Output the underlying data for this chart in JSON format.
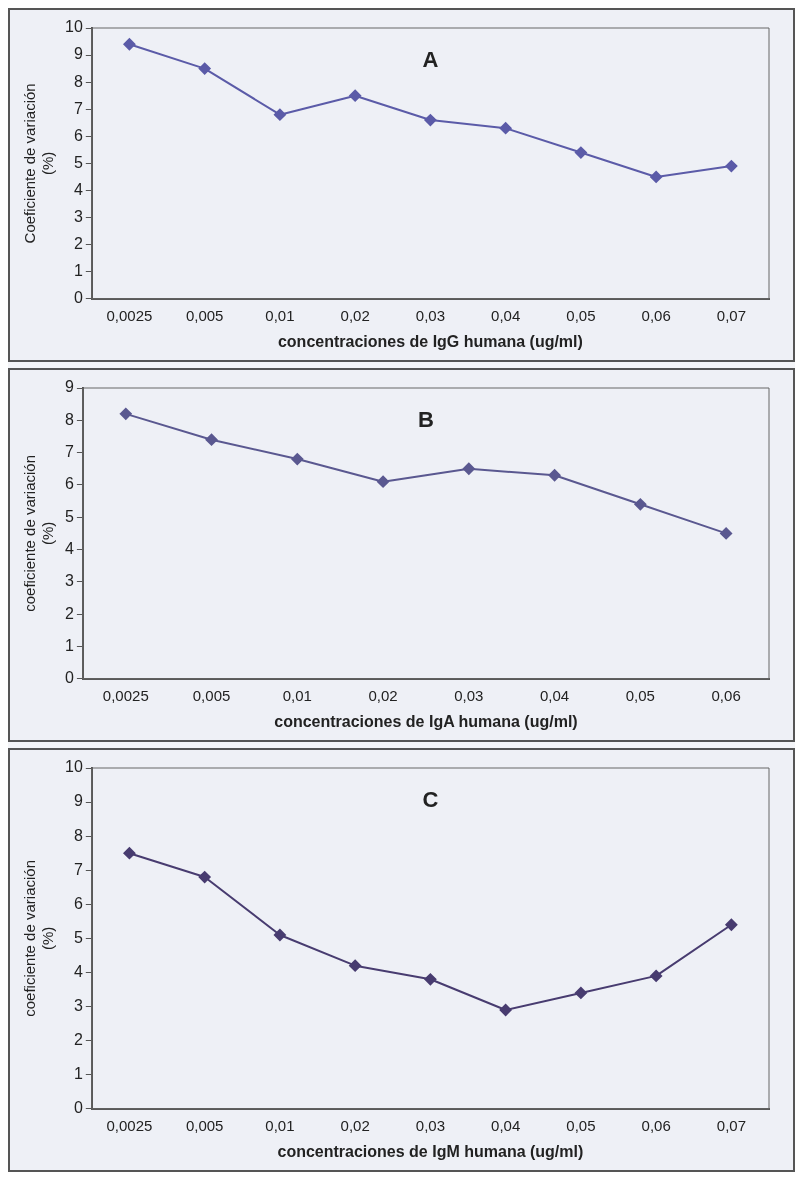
{
  "chart_data": [
    {
      "type": "line",
      "title": "A",
      "xlabel": "concentraciones de IgG humana (ug/ml)",
      "ylabel": "Coeficiente de variación\n(%)",
      "categories": [
        "0,0025",
        "0,005",
        "0,01",
        "0,02",
        "0,03",
        "0,04",
        "0,05",
        "0,06",
        "0,07"
      ],
      "series": [
        {
          "color": "#5b5ba8",
          "values": [
            9.4,
            8.5,
            6.8,
            7.5,
            6.6,
            6.3,
            5.4,
            4.5,
            4.9
          ]
        }
      ],
      "ylim": [
        0,
        10
      ],
      "yticks": [
        0,
        1,
        2,
        3,
        4,
        5,
        6,
        7,
        8,
        9,
        10
      ],
      "grid": false,
      "legend": false,
      "marker": "diamond",
      "line_style": "solid"
    },
    {
      "type": "line",
      "title": "B",
      "xlabel": "concentraciones de IgA humana (ug/ml)",
      "ylabel": "coeficiente de variación\n(%)",
      "categories": [
        "0,0025",
        "0,005",
        "0,01",
        "0,02",
        "0,03",
        "0,04",
        "0,05",
        "0,06"
      ],
      "series": [
        {
          "color": "#5a5890",
          "values": [
            8.2,
            7.4,
            6.8,
            6.1,
            6.5,
            6.3,
            5.4,
            4.5
          ]
        }
      ],
      "ylim": [
        0,
        9
      ],
      "yticks": [
        0,
        1,
        2,
        3,
        4,
        5,
        6,
        7,
        8,
        9
      ],
      "grid": false,
      "legend": false,
      "marker": "diamond",
      "line_style": "solid"
    },
    {
      "type": "line",
      "title": "C",
      "xlabel": "concentraciones de IgM humana (ug/ml)",
      "ylabel": "coeficiente de variación\n(%)",
      "categories": [
        "0,0025",
        "0,005",
        "0,01",
        "0,02",
        "0,03",
        "0,04",
        "0,05",
        "0,06",
        "0,07"
      ],
      "series": [
        {
          "color": "#483c70",
          "values": [
            7.5,
            6.8,
            5.1,
            4.2,
            3.8,
            2.9,
            3.4,
            3.9,
            5.4
          ]
        }
      ],
      "ylim": [
        0,
        10
      ],
      "yticks": [
        0,
        1,
        2,
        3,
        4,
        5,
        6,
        7,
        8,
        9,
        10
      ],
      "grid": false,
      "legend": false,
      "marker": "diamond",
      "line_style": "solid"
    }
  ]
}
